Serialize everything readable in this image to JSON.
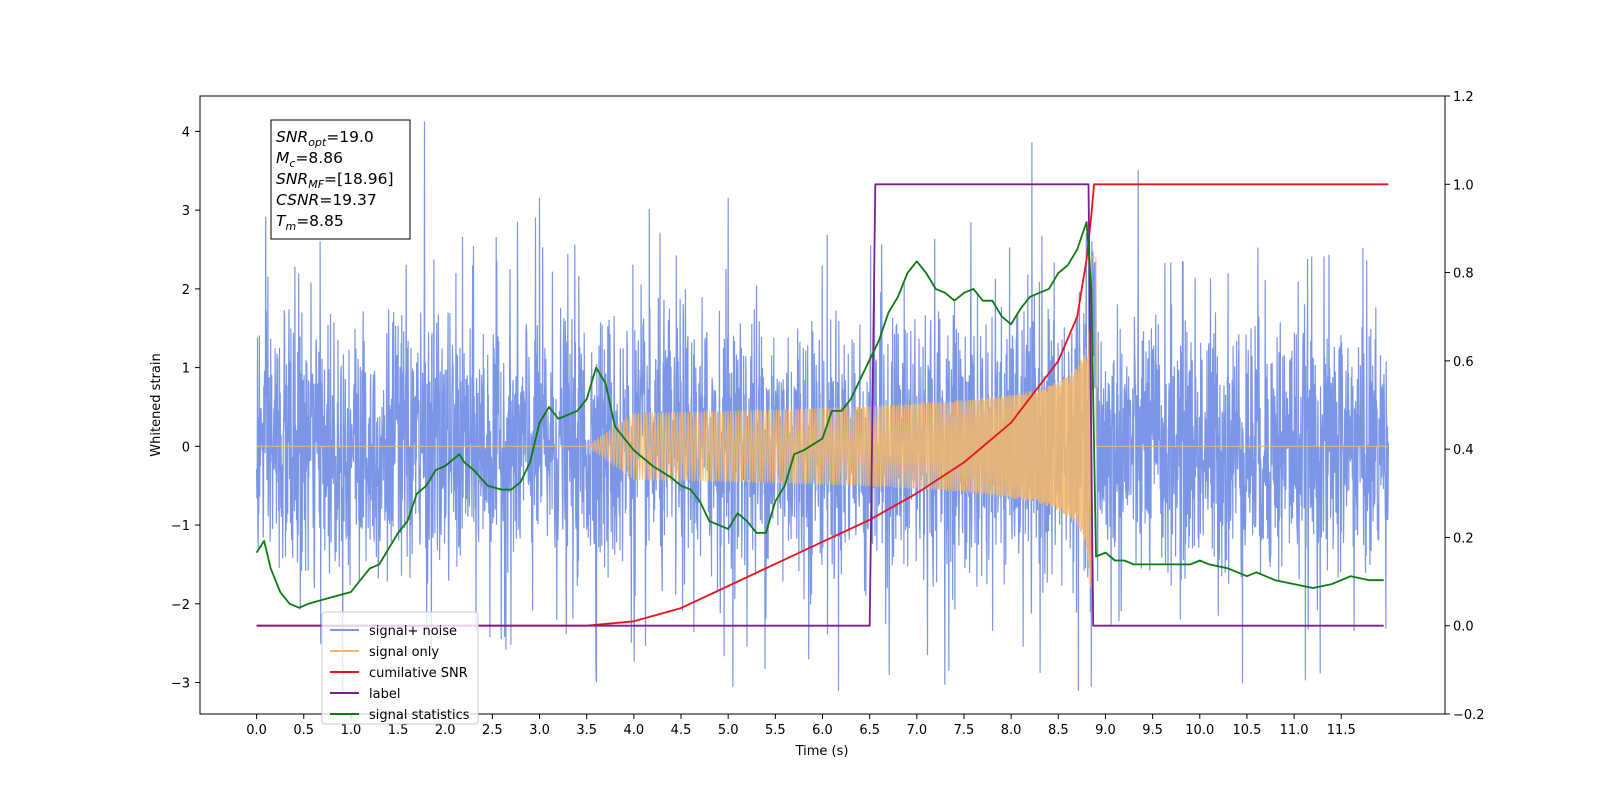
{
  "chart_data": {
    "type": "line",
    "title": "",
    "xlabel": "Time (s)",
    "ylabel": "Whitened strain",
    "y2label": "",
    "xlim": [
      -0.6,
      12.6
    ],
    "ylim": [
      -3.4,
      4.45
    ],
    "y2lim": [
      -0.2,
      1.2
    ],
    "grid": false,
    "legend_position": "lower-left",
    "x_ticks": [
      "0.0",
      "0.5",
      "1.0",
      "1.5",
      "2.0",
      "2.5",
      "3.0",
      "3.5",
      "4.0",
      "4.5",
      "5.0",
      "5.5",
      "6.0",
      "6.5",
      "7.0",
      "7.5",
      "8.0",
      "8.5",
      "9.0",
      "9.5",
      "10.0",
      "10.5",
      "11.0",
      "11.5"
    ],
    "y_ticks": [
      "−3",
      "−2",
      "−1",
      "0",
      "1",
      "2",
      "3",
      "4"
    ],
    "y2_ticks": [
      "−0.2",
      "0.0",
      "0.2",
      "0.4",
      "0.6",
      "0.8",
      "1.0",
      "1.2"
    ],
    "annotation": {
      "lines": [
        {
          "base": "SNR",
          "sub": "opt",
          "value": "=19.0"
        },
        {
          "base": "M",
          "sub": "c",
          "value": "=8.86"
        },
        {
          "base": "SNR",
          "sub": "MF",
          "value": "=[18.96]"
        },
        {
          "base": "CSNR",
          "sub": "",
          "value": "=19.37"
        },
        {
          "base": "T",
          "sub": "m",
          "value": "=8.85"
        }
      ]
    },
    "series": [
      {
        "name": "signal+ noise",
        "color": "#7b96e6",
        "axis": "left",
        "kind": "noise",
        "x_range": [
          0.0,
          12.0
        ],
        "approx_std": 0.85,
        "notable_peaks": [
          [
            1.78,
            4.12
          ],
          [
            3.6,
            -2.95
          ],
          [
            8.85,
            -3.05
          ],
          [
            5.0,
            3.15
          ],
          [
            3.0,
            3.15
          ]
        ]
      },
      {
        "name": "signal only",
        "color": "#f5b86a",
        "axis": "left",
        "kind": "chirp",
        "x_range": [
          0.0,
          12.0
        ],
        "start": 3.5,
        "merger": 8.85,
        "peak_amplitude": 2.5
      },
      {
        "name": "cumilative SNR",
        "color": "#e8141c",
        "axis": "right",
        "x": [
          0.0,
          3.5,
          4.0,
          4.5,
          5.0,
          5.5,
          6.0,
          6.5,
          7.0,
          7.5,
          8.0,
          8.5,
          8.7,
          8.8,
          8.85,
          8.88,
          12.0
        ],
        "values": [
          0.0,
          0.0,
          0.01,
          0.04,
          0.09,
          0.14,
          0.19,
          0.24,
          0.3,
          0.37,
          0.46,
          0.6,
          0.7,
          0.83,
          0.93,
          1.0,
          1.0
        ]
      },
      {
        "name": "label",
        "color": "#7b1f8f",
        "axis": "right",
        "x": [
          0.0,
          6.5,
          6.56,
          8.82,
          8.87,
          11.95
        ],
        "values": [
          0.0,
          0.0,
          1.0,
          1.0,
          0.0,
          0.0
        ]
      },
      {
        "name": "signal statistics",
        "color": "#0f7a12",
        "axis": "left",
        "x": [
          0.0,
          0.08,
          0.15,
          0.25,
          0.35,
          0.45,
          0.55,
          0.7,
          0.85,
          1.0,
          1.1,
          1.2,
          1.3,
          1.4,
          1.5,
          1.6,
          1.7,
          1.8,
          1.9,
          2.0,
          2.1,
          2.15,
          2.2,
          2.3,
          2.45,
          2.6,
          2.7,
          2.8,
          2.9,
          3.0,
          3.1,
          3.2,
          3.3,
          3.4,
          3.5,
          3.6,
          3.7,
          3.8,
          3.9,
          4.0,
          4.2,
          4.4,
          4.5,
          4.6,
          4.7,
          4.8,
          5.0,
          5.1,
          5.2,
          5.3,
          5.4,
          5.5,
          5.6,
          5.7,
          5.8,
          6.0,
          6.1,
          6.2,
          6.3,
          6.4,
          6.5,
          6.6,
          6.7,
          6.8,
          6.9,
          7.0,
          7.1,
          7.2,
          7.3,
          7.4,
          7.5,
          7.6,
          7.7,
          7.8,
          7.9,
          8.0,
          8.1,
          8.2,
          8.3,
          8.4,
          8.5,
          8.6,
          8.7,
          8.8,
          8.85,
          8.9,
          9.0,
          9.1,
          9.2,
          9.3,
          9.5,
          9.7,
          9.9,
          10.0,
          10.1,
          10.3,
          10.5,
          10.6,
          10.8,
          11.0,
          11.2,
          11.4,
          11.6,
          11.8,
          11.95
        ],
        "values": [
          -1.35,
          -1.2,
          -1.55,
          -1.85,
          -2.0,
          -2.05,
          -2.0,
          -1.95,
          -1.9,
          -1.85,
          -1.7,
          -1.55,
          -1.5,
          -1.3,
          -1.1,
          -0.95,
          -0.6,
          -0.5,
          -0.3,
          -0.25,
          -0.15,
          -0.1,
          -0.2,
          -0.3,
          -0.5,
          -0.55,
          -0.55,
          -0.45,
          -0.2,
          0.3,
          0.5,
          0.35,
          0.4,
          0.45,
          0.6,
          1.0,
          0.8,
          0.25,
          0.1,
          -0.05,
          -0.25,
          -0.4,
          -0.5,
          -0.55,
          -0.7,
          -0.95,
          -1.05,
          -0.85,
          -0.95,
          -1.1,
          -1.1,
          -0.7,
          -0.5,
          -0.1,
          -0.05,
          0.1,
          0.45,
          0.45,
          0.6,
          0.85,
          1.1,
          1.35,
          1.7,
          1.9,
          2.2,
          2.35,
          2.2,
          2.0,
          1.95,
          1.85,
          1.95,
          2.0,
          1.85,
          1.85,
          1.65,
          1.55,
          1.75,
          1.9,
          1.95,
          2.0,
          2.2,
          2.3,
          2.5,
          2.85,
          2.0,
          -1.4,
          -1.35,
          -1.45,
          -1.45,
          -1.5,
          -1.5,
          -1.5,
          -1.5,
          -1.45,
          -1.5,
          -1.55,
          -1.65,
          -1.6,
          -1.7,
          -1.75,
          -1.8,
          -1.75,
          -1.65,
          -1.7,
          -1.7
        ]
      }
    ]
  }
}
